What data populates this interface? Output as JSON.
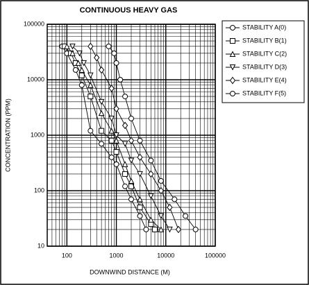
{
  "chart_data": {
    "type": "line",
    "title": "CONTINUOUS HEAVY GAS",
    "xlabel": "DOWNWIND DISTANCE (M)",
    "ylabel": "CONCENTRATION (PPM)",
    "log_x": true,
    "log_y": true,
    "grid": true,
    "minor_grid": true,
    "legend": "right",
    "xlim": [
      40,
      100000
    ],
    "xticks": [
      100,
      1000,
      10000,
      100000
    ],
    "ylim": [
      10,
      100000
    ],
    "yticks": [
      10,
      100,
      1000,
      10000,
      100000
    ],
    "series": [
      {
        "name": "STABILITY A(0)",
        "color": "#000000",
        "marker": "circle",
        "x": [
          80,
          100,
          150,
          200,
          300,
          500,
          800,
          1000,
          1500,
          2000,
          3000,
          4000
        ],
        "values": [
          40000,
          30000,
          15000,
          8000,
          1200,
          700,
          400,
          300,
          120,
          70,
          35,
          20
        ]
      },
      {
        "name": "STABILITY B(1)",
        "color": "#000000",
        "marker": "square",
        "x": [
          90,
          120,
          150,
          200,
          300,
          500,
          800,
          1000,
          1500,
          2000,
          3000,
          5000,
          6000
        ],
        "values": [
          40000,
          30000,
          20000,
          12000,
          5000,
          1200,
          800,
          500,
          200,
          120,
          50,
          25,
          20
        ]
      },
      {
        "name": "STABILITY C(2)",
        "color": "#000000",
        "marker": "triangle-up",
        "x": [
          100,
          130,
          170,
          200,
          300,
          500,
          800,
          1000,
          1500,
          2000,
          3000,
          5000,
          8000
        ],
        "values": [
          40000,
          30000,
          20000,
          15000,
          8000,
          2500,
          1200,
          800,
          300,
          150,
          70,
          30,
          20
        ]
      },
      {
        "name": "STABILITY D(3)",
        "color": "#000000",
        "marker": "triangle-down",
        "x": [
          130,
          180,
          220,
          300,
          500,
          800,
          1000,
          1500,
          2000,
          3000,
          5000,
          8000,
          12000
        ],
        "values": [
          40000,
          30000,
          20000,
          12000,
          4000,
          2000,
          1000,
          700,
          350,
          200,
          80,
          35,
          20
        ]
      },
      {
        "name": "STABILITY E(4)",
        "color": "#000000",
        "marker": "diamond",
        "x": [
          300,
          400,
          500,
          800,
          1000,
          1500,
          2000,
          3000,
          5000,
          8000,
          12000,
          18000
        ],
        "values": [
          40000,
          25000,
          15000,
          7000,
          3000,
          1500,
          800,
          400,
          200,
          100,
          50,
          20
        ]
      },
      {
        "name": "STABILITY F(5)",
        "color": "#000000",
        "marker": "circle",
        "x": [
          700,
          900,
          1000,
          1200,
          1500,
          2000,
          3000,
          5000,
          8000,
          15000,
          25000,
          40000
        ],
        "values": [
          40000,
          30000,
          20000,
          10000,
          5000,
          2000,
          800,
          350,
          150,
          70,
          35,
          20
        ]
      }
    ]
  }
}
